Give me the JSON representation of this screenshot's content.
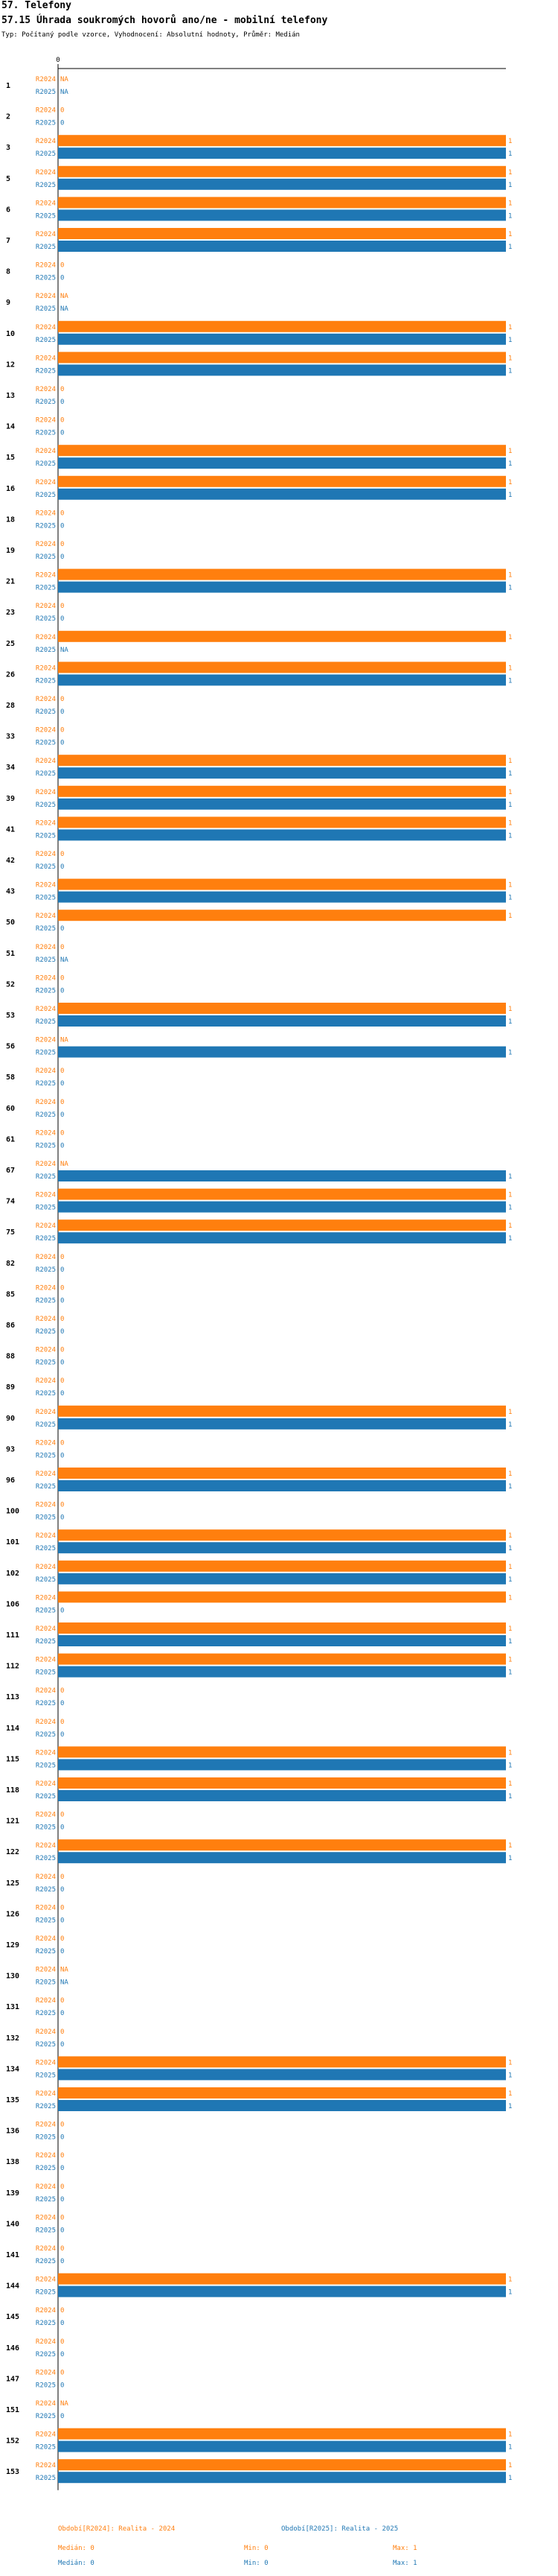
{
  "header": {
    "title": "57. Telefony",
    "subtitle": "57.15 Úhrada soukromých hovorů ano/ne - mobilní telefony",
    "type_line": "Typ: Počítaný podle vzorce, Vyhodnocení: Absolutní hodnoty, Průměr: Medián"
  },
  "chart_data": {
    "type": "bar",
    "orientation": "horizontal",
    "x_range": [
      0,
      1
    ],
    "x_tick_labels": [
      "0"
    ],
    "series": [
      {
        "name": "R2024",
        "color": "#ff7f0e"
      },
      {
        "name": "R2025",
        "color": "#1f77b4"
      }
    ],
    "categories": [
      "1",
      "2",
      "3",
      "5",
      "6",
      "7",
      "8",
      "9",
      "10",
      "12",
      "13",
      "14",
      "15",
      "16",
      "18",
      "19",
      "21",
      "23",
      "25",
      "26",
      "28",
      "33",
      "34",
      "39",
      "41",
      "42",
      "43",
      "50",
      "51",
      "52",
      "53",
      "56",
      "58",
      "60",
      "61",
      "67",
      "74",
      "75",
      "82",
      "85",
      "86",
      "88",
      "89",
      "90",
      "93",
      "96",
      "100",
      "101",
      "102",
      "106",
      "111",
      "112",
      "113",
      "114",
      "115",
      "118",
      "121",
      "122",
      "125",
      "126",
      "129",
      "130",
      "131",
      "132",
      "134",
      "135",
      "136",
      "138",
      "139",
      "140",
      "141",
      "144",
      "145",
      "146",
      "147",
      "151",
      "152",
      "153"
    ],
    "values_2024": [
      null,
      0,
      1,
      1,
      1,
      1,
      0,
      null,
      1,
      1,
      0,
      0,
      1,
      1,
      0,
      0,
      1,
      0,
      1,
      1,
      0,
      0,
      1,
      1,
      1,
      0,
      1,
      1,
      0,
      0,
      1,
      null,
      0,
      0,
      0,
      null,
      1,
      1,
      0,
      0,
      0,
      0,
      0,
      1,
      0,
      1,
      0,
      1,
      1,
      1,
      1,
      1,
      0,
      0,
      1,
      1,
      0,
      1,
      0,
      0,
      0,
      null,
      0,
      0,
      1,
      1,
      0,
      0,
      0,
      0,
      0,
      1,
      0,
      0,
      0,
      null,
      1,
      1
    ],
    "values_2025": [
      null,
      0,
      1,
      1,
      1,
      1,
      0,
      null,
      1,
      1,
      0,
      0,
      1,
      1,
      0,
      0,
      1,
      0,
      null,
      1,
      0,
      0,
      1,
      1,
      1,
      0,
      1,
      0,
      null,
      0,
      1,
      1,
      0,
      0,
      0,
      1,
      1,
      1,
      0,
      0,
      0,
      0,
      0,
      1,
      0,
      1,
      0,
      1,
      1,
      0,
      1,
      1,
      0,
      0,
      1,
      1,
      0,
      1,
      0,
      0,
      0,
      null,
      0,
      0,
      1,
      1,
      0,
      0,
      0,
      0,
      0,
      1,
      0,
      0,
      0,
      0,
      1,
      1
    ],
    "na_label": "NA"
  },
  "legend": {
    "period_2024": "Období[R2024]: Realita - 2024",
    "period_2025": "Období[R2025]: Realita - 2025",
    "stats_2024": {
      "median": "Medián: 0",
      "min": "Min: 0",
      "max": "Max: 1"
    },
    "stats_2025": {
      "median": "Medián: 0",
      "min": "Min: 0",
      "max": "Max: 1"
    }
  }
}
